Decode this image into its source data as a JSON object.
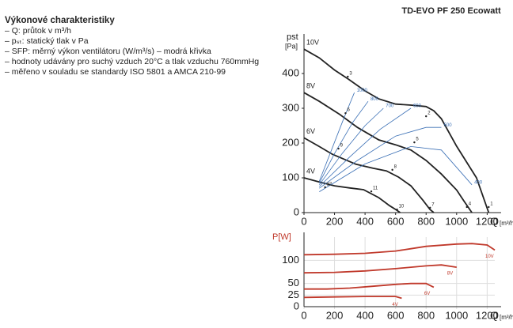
{
  "header": {
    "title": "TD-EVO PF 250 Ecowatt"
  },
  "notes": {
    "title": "Výkonové charakteristiky",
    "items": [
      "– Q: průtok v m³/h",
      "– pₛₜ: statický tlak v Pa",
      "– SFP: měrný výkon ventilátoru (W/m³/s) – modrá křivka",
      "– hodnoty udávány pro suchý vzduch 20°C a tlak vzduchu 760mmHg",
      "– měřeno v souladu se standardy ISO 5801 a AMCA 210-99"
    ]
  },
  "chart_data": [
    {
      "type": "line",
      "y_label": "pst",
      "y_unit": "[Pa]",
      "x_label": "Q",
      "x_unit": "[m³/h]",
      "xlim": [
        0,
        1250
      ],
      "xticks": [
        0,
        200,
        400,
        600,
        800,
        1000,
        1200
      ],
      "ylim": [
        0,
        500
      ],
      "yticks": [
        0,
        100,
        200,
        300,
        400
      ],
      "grid": false,
      "series": [
        {
          "name": "10V",
          "color": "#222222",
          "x": [
            0,
            100,
            200,
            290,
            400,
            490,
            600,
            700,
            800,
            850,
            900,
            1000,
            1130,
            1210
          ],
          "values": [
            470,
            445,
            410,
            384,
            350,
            327,
            312,
            309,
            305,
            293,
            270,
            191,
            100,
            0
          ]
        },
        {
          "name": "8V",
          "color": "#222222",
          "x": [
            0,
            100,
            235,
            350,
            490,
            600,
            700,
            800,
            900,
            1000,
            1050,
            1100
          ],
          "values": [
            345,
            320,
            282,
            245,
            209,
            195,
            180,
            150,
            111,
            65,
            32,
            0
          ]
        },
        {
          "name": "6V",
          "color": "#222222",
          "x": [
            0,
            100,
            185,
            340,
            450,
            540,
            620,
            700,
            780,
            825,
            850
          ],
          "values": [
            215,
            190,
            168,
            139,
            128,
            120,
            102,
            77,
            35,
            9,
            0
          ]
        },
        {
          "name": "4V",
          "color": "#222222",
          "x": [
            0,
            100,
            200,
            300,
            390,
            490,
            560,
            600,
            630
          ],
          "values": [
            100,
            88,
            77,
            71,
            66,
            43,
            20,
            9,
            0
          ]
        },
        {
          "name": "1000",
          "color": "#3a6fb5",
          "sfp": true,
          "x": [
            100,
            180,
            260,
            330
          ],
          "values": [
            90,
            180,
            270,
            345
          ]
        },
        {
          "name": "800",
          "color": "#3a6fb5",
          "sfp": true,
          "x": [
            100,
            200,
            320,
            420
          ],
          "values": [
            85,
            170,
            260,
            320
          ]
        },
        {
          "name": "700",
          "color": "#3a6fb5",
          "sfp": true,
          "x": [
            100,
            250,
            400,
            520
          ],
          "values": [
            80,
            170,
            250,
            300
          ]
        },
        {
          "name": "600",
          "color": "#3a6fb5",
          "sfp": true,
          "x": [
            100,
            300,
            500,
            700
          ],
          "values": [
            75,
            160,
            240,
            300
          ]
        },
        {
          "name": "500",
          "color": "#3a6fb5",
          "sfp": true,
          "x": [
            100,
            350,
            600,
            800,
            900
          ],
          "values": [
            70,
            150,
            220,
            245,
            245
          ]
        },
        {
          "name": "400",
          "color": "#3a6fb5",
          "sfp": true,
          "x": [
            100,
            400,
            700,
            900,
            1000,
            1100
          ],
          "values": [
            60,
            140,
            190,
            180,
            130,
            80
          ]
        }
      ],
      "points": [
        {
          "label": "1",
          "x": 1210,
          "y": 16
        },
        {
          "label": "2",
          "x": 800,
          "y": 277
        },
        {
          "label": "3",
          "x": 287,
          "y": 391
        },
        {
          "label": "4",
          "x": 1067,
          "y": 16
        },
        {
          "label": "5",
          "x": 723,
          "y": 202
        },
        {
          "label": "6",
          "x": 272,
          "y": 286
        },
        {
          "label": "7",
          "x": 826,
          "y": 14
        },
        {
          "label": "8",
          "x": 579,
          "y": 123
        },
        {
          "label": "9",
          "x": 226,
          "y": 184
        },
        {
          "label": "10",
          "x": 610,
          "y": 9
        },
        {
          "label": "11",
          "x": 441,
          "y": 61
        },
        {
          "label": "12",
          "x": 138,
          "y": 73
        }
      ]
    },
    {
      "type": "line",
      "y_label": "P[W]",
      "x_label": "Q",
      "x_unit": "[m³/h]",
      "xlim": [
        0,
        1250
      ],
      "xticks": [
        0,
        200,
        400,
        600,
        800,
        1000,
        1200
      ],
      "ylim": [
        0,
        150
      ],
      "yticks": [
        0,
        25,
        50,
        100
      ],
      "grid": true,
      "series": [
        {
          "name": "10V",
          "color": "#c0392b",
          "x": [
            0,
            200,
            400,
            600,
            700,
            800,
            1000,
            1100,
            1200,
            1250
          ],
          "values": [
            112,
            113,
            115,
            120,
            125,
            130,
            135,
            136,
            133,
            122
          ]
        },
        {
          "name": "8V",
          "color": "#c0392b",
          "x": [
            0,
            200,
            400,
            600,
            700,
            800,
            900,
            1000
          ],
          "values": [
            73,
            74,
            77,
            82,
            85,
            88,
            90,
            85
          ]
        },
        {
          "name": "6V",
          "color": "#c0392b",
          "x": [
            0,
            150,
            300,
            450,
            600,
            700,
            800,
            850
          ],
          "values": [
            38,
            38,
            40,
            44,
            48,
            50,
            50,
            42
          ]
        },
        {
          "name": "4V",
          "color": "#c0392b",
          "x": [
            0,
            200,
            400,
            550,
            600,
            640
          ],
          "values": [
            20,
            21,
            22,
            22,
            22,
            18
          ]
        }
      ]
    }
  ]
}
